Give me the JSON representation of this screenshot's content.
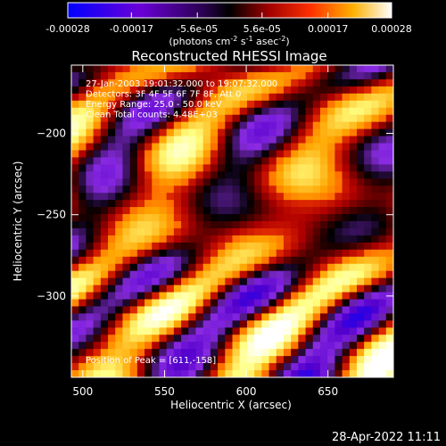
{
  "colorbar": {
    "tick_labels": [
      "-0.00028",
      "-0.00017",
      "-5.6e-05",
      "5.6e-05",
      "0.00017",
      "0.00028"
    ],
    "tick_values": [
      -0.00028,
      -0.00017,
      -5.6e-05,
      5.6e-05,
      0.00017,
      0.00028
    ],
    "range": [
      -0.00028,
      0.00028
    ],
    "unit_main": "(photons cm",
    "unit_exp1": "-2",
    "unit_s": " s",
    "unit_exp2": "-1",
    "unit_asec": " asec",
    "unit_exp3": "-2",
    "unit_close": ")"
  },
  "chart_data": {
    "type": "heatmap",
    "title": "Reconstructed RHESSI Image",
    "xlabel": "Heliocentric X (arcsec)",
    "ylabel": "Heliocentric Y (arcsec)",
    "xlim": [
      493,
      690
    ],
    "ylim": [
      -350,
      -158
    ],
    "x_ticks": [
      500,
      550,
      600,
      650
    ],
    "y_ticks": [
      -200,
      -250,
      -300
    ],
    "x_tick_labels": [
      "500",
      "550",
      "600",
      "650"
    ],
    "y_tick_labels": [
      "−200",
      "−250",
      "−300"
    ],
    "annotations": [
      "27-Jan-2003 19:01:32.000 to 19:07:32.000",
      "Detectors: 3F 4F 5F 6F 7F 8F, Att 0",
      "Energy Range: 25.0 - 50.0 keV",
      "Clean    Total counts: 4.48E+03"
    ],
    "peak_label": "Position of Peak = [611,-158]",
    "peak": [
      611,
      -158
    ],
    "colormap": [
      "#0000ff",
      "#5500cc",
      "#8a2be2",
      "#000000",
      "#b00000",
      "#ff4500",
      "#ffa500",
      "#ffff80",
      "#ffffff"
    ]
  },
  "footer": {
    "timestamp": "28-Apr-2022 11:11"
  }
}
